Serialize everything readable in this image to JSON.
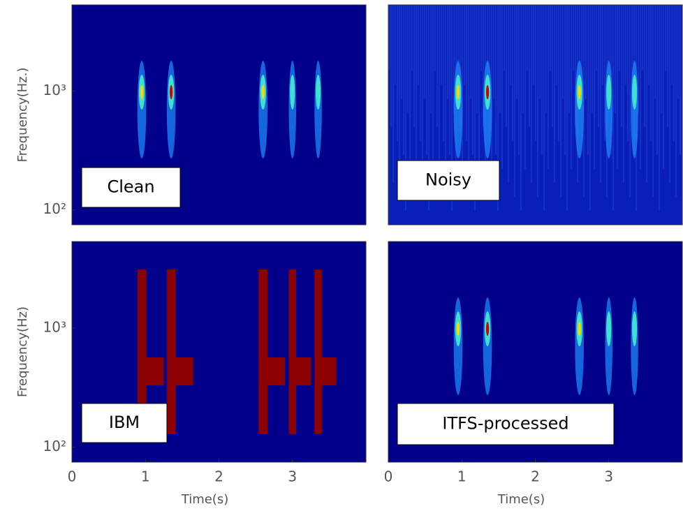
{
  "chart_data": [
    {
      "type": "spectrogram",
      "annotation": "Clean",
      "ylabel": "Frequency(Hz.)",
      "log_y": true,
      "ylim": [
        75,
        5300
      ],
      "yticks": [
        {
          "value": 100,
          "label": "10²"
        },
        {
          "value": 1000,
          "label": "10³"
        }
      ],
      "background": "#00008b"
    },
    {
      "type": "spectrogram",
      "annotation": "Noisy",
      "background": "#0a1fb8"
    },
    {
      "type": "spectrogram",
      "annotation": "IBM",
      "ylabel": "Frequency(Hz)",
      "log_y": true,
      "ylim": [
        75,
        5300
      ],
      "yticks": [
        {
          "value": 100,
          "label": "10²"
        },
        {
          "value": 1000,
          "label": "10³"
        }
      ],
      "xlabel": "Time(s)",
      "xlim": [
        0,
        4
      ],
      "xticks": [
        0,
        1,
        2,
        3
      ],
      "background": "#00008b"
    },
    {
      "type": "spectrogram",
      "annotation": "ITFS-processed",
      "xlabel": "Time(s)",
      "xlim": [
        0,
        4
      ],
      "xticks": [
        0,
        1,
        2,
        3
      ],
      "background": "#00008b"
    }
  ]
}
